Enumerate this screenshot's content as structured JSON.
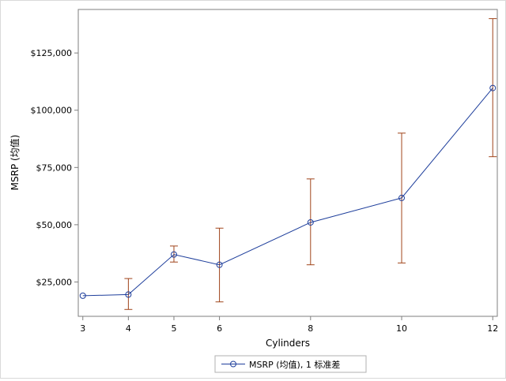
{
  "chart_data": {
    "type": "line",
    "xlabel": "Cylinders",
    "ylabel": "MSRP (均值)",
    "x": [
      3,
      4,
      5,
      6,
      8,
      10,
      12
    ],
    "x_tick_labels": [
      "3",
      "4",
      "5",
      "6",
      "8",
      "10",
      "12"
    ],
    "y_tick_values": [
      25000,
      50000,
      75000,
      100000,
      125000
    ],
    "y_tick_labels": [
      "$25,000",
      "$50,000",
      "$75,000",
      "$100,000",
      "$125,000"
    ],
    "xlim": [
      2.9,
      12.1
    ],
    "ylim": [
      10000,
      144000
    ],
    "series": [
      {
        "name": "MSRP (均值), 1 标准差",
        "values": [
          19000,
          19500,
          37000,
          32500,
          51000,
          61700,
          109700
        ],
        "error_lower": [
          null,
          13000,
          33700,
          16300,
          32500,
          33300,
          79700
        ],
        "error_upper": [
          null,
          26500,
          40700,
          48500,
          70000,
          90000,
          140000
        ]
      }
    ],
    "legend": {
      "position": "bottom-center"
    },
    "grid": false,
    "colors": {
      "line": "#1f3f9c",
      "marker": "#1f3f9c",
      "error_bar": "#a0441a",
      "axis": "#7f7f7f"
    }
  }
}
